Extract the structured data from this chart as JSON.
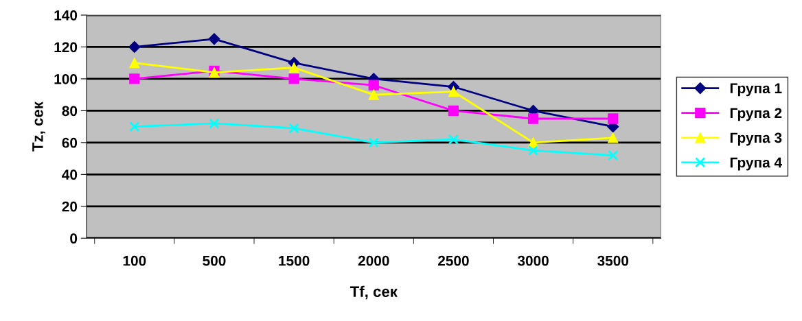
{
  "chart_data": {
    "type": "line",
    "xlabel": "Tf, сек",
    "ylabel": "Tz, сек",
    "categories": [
      "100",
      "500",
      "1500",
      "2000",
      "2500",
      "3000",
      "3500"
    ],
    "series": [
      {
        "name": "Група 1",
        "color": "#000080",
        "marker": "diamond",
        "values": [
          120,
          125,
          110,
          100,
          95,
          80,
          70
        ]
      },
      {
        "name": "Група 2",
        "color": "#ff00ff",
        "marker": "square",
        "values": [
          100,
          105,
          100,
          96,
          80,
          75,
          75
        ]
      },
      {
        "name": "Група 3",
        "color": "#ffff00",
        "marker": "triangle",
        "values": [
          110,
          104,
          107,
          90,
          92,
          60,
          63
        ]
      },
      {
        "name": "Група 4",
        "color": "#00ffff",
        "marker": "cross",
        "values": [
          70,
          72,
          69,
          60,
          62,
          55,
          52
        ]
      }
    ],
    "ylim": [
      0,
      140
    ],
    "yticks": [
      0,
      20,
      40,
      60,
      80,
      100,
      120,
      140
    ],
    "grid": "y",
    "legend": "right"
  }
}
